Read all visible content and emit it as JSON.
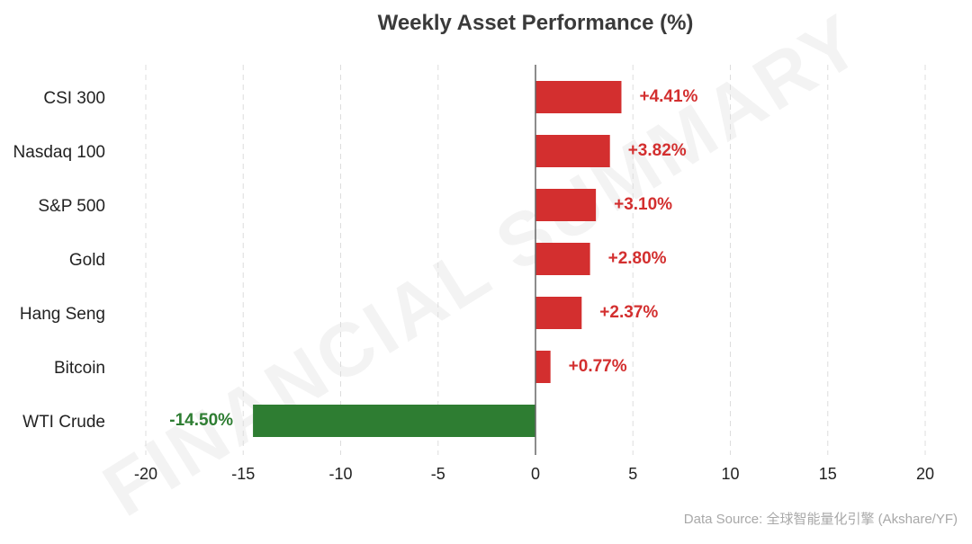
{
  "chart_data": {
    "type": "bar",
    "orientation": "horizontal",
    "title": "Weekly Asset Performance (%)",
    "categories": [
      "CSI 300",
      "Nasdaq 100",
      "S&P 500",
      "Gold",
      "Hang Seng",
      "Bitcoin",
      "WTI Crude"
    ],
    "values": [
      4.41,
      3.82,
      3.1,
      2.8,
      2.37,
      0.77,
      -14.5
    ],
    "value_labels": [
      "+4.41%",
      "+3.82%",
      "+3.10%",
      "+2.80%",
      "+2.37%",
      "+0.77%",
      "-14.50%"
    ],
    "xlim": [
      -20,
      20
    ],
    "xticks": [
      -20,
      -15,
      -10,
      -5,
      0,
      5,
      10,
      15,
      20
    ],
    "xtick_labels": [
      "-20",
      "-15",
      "-10",
      "-5",
      "0",
      "5",
      "10",
      "15",
      "20"
    ],
    "xlabel": "",
    "ylabel": "",
    "grid": "vertical-dashed",
    "legend": "none"
  },
  "colors": {
    "positive": "#d32f2f",
    "negative": "#2e7d32",
    "grid": "#dddddd",
    "zero_line": "#666666"
  },
  "watermark": "FINANCIAL SUMMARY",
  "source": "Data Source: 全球智能量化引擎 (Akshare/YF)"
}
